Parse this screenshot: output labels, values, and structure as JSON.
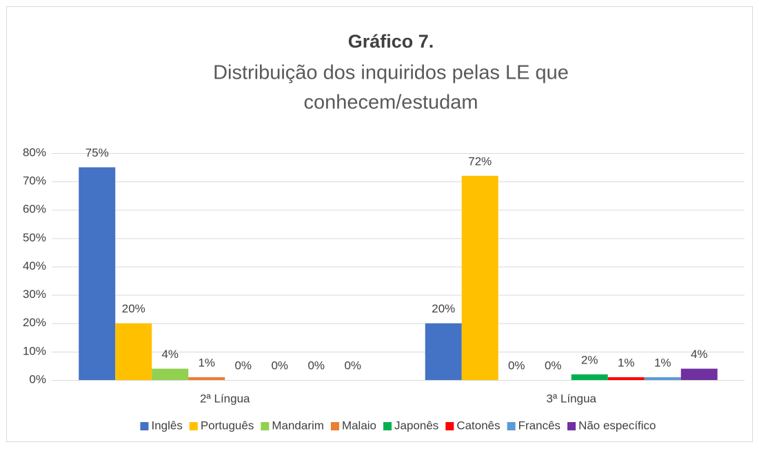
{
  "chart_data": {
    "type": "bar",
    "title": "Gráfico 7.",
    "subtitle": [
      "Distribuição dos inquiridos pelas LE que",
      "conhecem/estudam"
    ],
    "categories": [
      "2ª Língua",
      "3ª Língua"
    ],
    "series": [
      {
        "name": "Inglês",
        "color": "#4472c4",
        "values": [
          75,
          20
        ],
        "value_labels": [
          "75%",
          "20%"
        ]
      },
      {
        "name": "Português",
        "color": "#ffc000",
        "values": [
          20,
          72
        ],
        "value_labels": [
          "20%",
          "72%"
        ]
      },
      {
        "name": "Mandarim",
        "color": "#92d050",
        "values": [
          4,
          0
        ],
        "value_labels": [
          "4%",
          "0%"
        ]
      },
      {
        "name": "Malaio",
        "color": "#ed7d31",
        "values": [
          1,
          0
        ],
        "value_labels": [
          "1%",
          "0%"
        ]
      },
      {
        "name": "Japonês",
        "color": "#00b050",
        "values": [
          0,
          2
        ],
        "value_labels": [
          "0%",
          "2%"
        ]
      },
      {
        "name": "Catonês",
        "color": "#ff0000",
        "values": [
          0,
          1
        ],
        "value_labels": [
          "0%",
          "1%"
        ]
      },
      {
        "name": "Francês",
        "color": "#5b9bd5",
        "values": [
          0,
          1
        ],
        "value_labels": [
          "0%",
          "1%"
        ]
      },
      {
        "name": "Não específico",
        "color": "#7030a0",
        "values": [
          0,
          4
        ],
        "value_labels": [
          "0%",
          "4%"
        ]
      }
    ],
    "ylim": [
      0,
      80
    ],
    "yticks": [
      {
        "value": 0,
        "label": "0%"
      },
      {
        "value": 10,
        "label": "10%"
      },
      {
        "value": 20,
        "label": "20%"
      },
      {
        "value": 30,
        "label": "30%"
      },
      {
        "value": 40,
        "label": "40%"
      },
      {
        "value": 50,
        "label": "50%"
      },
      {
        "value": 60,
        "label": "60%"
      },
      {
        "value": 70,
        "label": "70%"
      },
      {
        "value": 80,
        "label": "80%"
      }
    ],
    "grid": true,
    "legend": "bottom"
  }
}
